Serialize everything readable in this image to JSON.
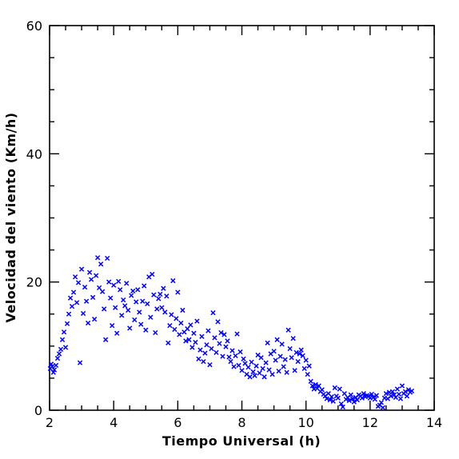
{
  "chart_data": {
    "type": "scatter",
    "title": "",
    "xlabel": "Tiempo Universal (h)",
    "ylabel": "Velocidad del viento (Km/h)",
    "xlim": [
      2,
      14
    ],
    "ylim": [
      0,
      60
    ],
    "x_ticks": [
      2,
      4,
      6,
      8,
      10,
      12,
      14
    ],
    "y_ticks": [
      0,
      20,
      40,
      60
    ],
    "x_tick_labels": [
      "2",
      "4",
      "6",
      "8",
      "10",
      "12",
      "14"
    ],
    "y_tick_labels": [
      "0",
      "20",
      "40",
      "60"
    ],
    "grid": false,
    "marker": "x",
    "color": "#0000ff",
    "series": [
      {
        "points": [
          [
            2.02,
            6.5
          ],
          [
            2.05,
            7.2
          ],
          [
            2.08,
            6.8
          ],
          [
            2.12,
            5.9
          ],
          [
            2.15,
            6.3
          ],
          [
            2.2,
            7.0
          ],
          [
            2.25,
            8.1
          ],
          [
            2.3,
            8.8
          ],
          [
            2.35,
            9.5
          ],
          [
            2.4,
            11.0
          ],
          [
            2.45,
            12.2
          ],
          [
            2.5,
            9.8
          ],
          [
            2.55,
            13.5
          ],
          [
            2.6,
            15.0
          ],
          [
            2.65,
            17.5
          ],
          [
            2.7,
            16.2
          ],
          [
            2.75,
            18.4
          ],
          [
            2.8,
            20.8
          ],
          [
            2.85,
            16.8
          ],
          [
            2.9,
            19.9
          ],
          [
            2.95,
            7.4
          ],
          [
            3.0,
            22.0
          ],
          [
            3.05,
            15.1
          ],
          [
            3.1,
            19.2
          ],
          [
            3.15,
            17.0
          ],
          [
            3.2,
            13.6
          ],
          [
            3.25,
            21.5
          ],
          [
            3.3,
            20.4
          ],
          [
            3.35,
            17.6
          ],
          [
            3.4,
            14.2
          ],
          [
            3.45,
            21.0
          ],
          [
            3.5,
            23.8
          ],
          [
            3.55,
            19.1
          ],
          [
            3.6,
            22.8
          ],
          [
            3.65,
            18.5
          ],
          [
            3.7,
            15.8
          ],
          [
            3.75,
            11.0
          ],
          [
            3.8,
            23.7
          ],
          [
            3.85,
            20.0
          ],
          [
            3.9,
            17.5
          ],
          [
            3.95,
            13.2
          ],
          [
            4.0,
            19.5
          ],
          [
            4.05,
            16.0
          ],
          [
            4.1,
            12.0
          ],
          [
            4.15,
            20.1
          ],
          [
            4.2,
            18.8
          ],
          [
            4.25,
            14.8
          ],
          [
            4.3,
            17.2
          ],
          [
            4.35,
            16.3
          ],
          [
            4.4,
            19.8
          ],
          [
            4.45,
            15.6
          ],
          [
            4.5,
            12.8
          ],
          [
            4.55,
            17.9
          ],
          [
            4.6,
            18.6
          ],
          [
            4.65,
            14.1
          ],
          [
            4.7,
            16.9
          ],
          [
            4.75,
            18.8
          ],
          [
            4.8,
            15.3
          ],
          [
            4.85,
            13.4
          ],
          [
            4.9,
            17.0
          ],
          [
            4.95,
            19.4
          ],
          [
            5.0,
            12.5
          ],
          [
            5.05,
            16.6
          ],
          [
            5.1,
            20.8
          ],
          [
            5.15,
            14.5
          ],
          [
            5.2,
            21.2
          ],
          [
            5.25,
            18.0
          ],
          [
            5.3,
            12.1
          ],
          [
            5.35,
            15.8
          ],
          [
            5.4,
            17.4
          ],
          [
            5.45,
            18.1
          ],
          [
            5.5,
            16.0
          ],
          [
            5.55,
            19.0
          ],
          [
            5.6,
            15.3
          ],
          [
            5.65,
            17.8
          ],
          [
            5.7,
            10.5
          ],
          [
            5.75,
            13.2
          ],
          [
            5.8,
            14.9
          ],
          [
            5.85,
            20.2
          ],
          [
            5.9,
            12.6
          ],
          [
            5.95,
            14.3
          ],
          [
            6.0,
            18.4
          ],
          [
            6.05,
            11.8
          ],
          [
            6.1,
            13.6
          ],
          [
            6.15,
            15.6
          ],
          [
            6.2,
            12.2
          ],
          [
            6.25,
            10.8
          ],
          [
            6.3,
            12.7
          ],
          [
            6.35,
            11.0
          ],
          [
            6.4,
            13.3
          ],
          [
            6.45,
            9.8
          ],
          [
            6.5,
            12.0
          ],
          [
            6.55,
            10.6
          ],
          [
            6.6,
            13.9
          ],
          [
            6.65,
            8.0
          ],
          [
            6.7,
            9.4
          ],
          [
            6.75,
            11.5
          ],
          [
            6.8,
            7.6
          ],
          [
            6.85,
            8.9
          ],
          [
            6.9,
            10.2
          ],
          [
            6.95,
            12.4
          ],
          [
            7.0,
            7.1
          ],
          [
            7.05,
            9.6
          ],
          [
            7.1,
            15.2
          ],
          [
            7.15,
            11.3
          ],
          [
            7.2,
            9.0
          ],
          [
            7.25,
            13.8
          ],
          [
            7.3,
            10.4
          ],
          [
            7.35,
            12.1
          ],
          [
            7.4,
            8.4
          ],
          [
            7.45,
            11.8
          ],
          [
            7.5,
            9.9
          ],
          [
            7.55,
            10.8
          ],
          [
            7.6,
            8.3
          ],
          [
            7.65,
            7.6
          ],
          [
            7.7,
            9.3
          ],
          [
            7.75,
            6.8
          ],
          [
            7.8,
            8.5
          ],
          [
            7.85,
            11.9
          ],
          [
            7.9,
            7.0
          ],
          [
            7.95,
            9.1
          ],
          [
            8.0,
            6.2
          ],
          [
            8.05,
            8.0
          ],
          [
            8.1,
            7.3
          ],
          [
            8.15,
            5.6
          ],
          [
            8.2,
            6.7
          ],
          [
            8.25,
            5.2
          ],
          [
            8.3,
            7.5
          ],
          [
            8.35,
            6.0
          ],
          [
            8.4,
            5.4
          ],
          [
            8.45,
            6.9
          ],
          [
            8.5,
            8.6
          ],
          [
            8.55,
            5.8
          ],
          [
            8.6,
            8.2
          ],
          [
            8.65,
            6.5
          ],
          [
            8.7,
            5.2
          ],
          [
            8.75,
            7.4
          ],
          [
            8.8,
            10.5
          ],
          [
            8.85,
            6.3
          ],
          [
            8.9,
            8.8
          ],
          [
            8.95,
            5.6
          ],
          [
            9.0,
            9.2
          ],
          [
            9.05,
            7.8
          ],
          [
            9.1,
            11.0
          ],
          [
            9.15,
            6.1
          ],
          [
            9.2,
            8.4
          ],
          [
            9.25,
            10.3
          ],
          [
            9.3,
            6.8
          ],
          [
            9.35,
            7.9
          ],
          [
            9.4,
            5.9
          ],
          [
            9.45,
            12.5
          ],
          [
            9.5,
            9.6
          ],
          [
            9.55,
            8.2
          ],
          [
            9.6,
            11.2
          ],
          [
            9.65,
            6.2
          ],
          [
            9.7,
            9.0
          ],
          [
            9.75,
            7.6
          ],
          [
            9.8,
            8.8
          ],
          [
            9.85,
            9.4
          ],
          [
            9.9,
            8.5
          ],
          [
            9.95,
            6.5
          ],
          [
            10.0,
            7.8
          ],
          [
            10.05,
            5.6
          ],
          [
            10.1,
            6.9
          ],
          [
            10.15,
            4.5
          ],
          [
            10.2,
            3.8
          ],
          [
            10.25,
            3.3
          ],
          [
            10.3,
            4.0
          ],
          [
            10.35,
            3.4
          ],
          [
            10.4,
            3.8
          ],
          [
            10.45,
            2.9
          ],
          [
            10.5,
            3.2
          ],
          [
            10.55,
            2.5
          ],
          [
            10.6,
            2.2
          ],
          [
            10.65,
            1.8
          ],
          [
            10.7,
            2.6
          ],
          [
            10.75,
            1.6
          ],
          [
            10.8,
            2.1
          ],
          [
            10.85,
            1.4
          ],
          [
            10.9,
            3.5
          ],
          [
            10.95,
            2.2
          ],
          [
            11.0,
            1.9
          ],
          [
            11.05,
            3.3
          ],
          [
            11.1,
            1.0
          ],
          [
            11.15,
            0.5
          ],
          [
            11.2,
            2.6
          ],
          [
            11.25,
            1.7
          ],
          [
            11.3,
            2.0
          ],
          [
            11.35,
            1.5
          ],
          [
            11.4,
            2.4
          ],
          [
            11.45,
            1.8
          ],
          [
            11.5,
            1.3
          ],
          [
            11.55,
            2.0
          ],
          [
            11.6,
            1.6
          ],
          [
            11.65,
            2.4
          ],
          [
            11.7,
            2.2
          ],
          [
            11.75,
            1.9
          ],
          [
            11.8,
            2.6
          ],
          [
            11.85,
            2.1
          ],
          [
            11.9,
            2.3
          ],
          [
            11.95,
            2.2
          ],
          [
            12.0,
            1.9
          ],
          [
            12.05,
            2.5
          ],
          [
            12.1,
            2.0
          ],
          [
            12.15,
            1.7
          ],
          [
            12.2,
            2.3
          ],
          [
            12.25,
            0.6
          ],
          [
            12.3,
            0.8
          ],
          [
            12.35,
            1.2
          ],
          [
            12.4,
            0.4
          ],
          [
            12.45,
            1.9
          ],
          [
            12.5,
            2.6
          ],
          [
            12.55,
            1.8
          ],
          [
            12.6,
            2.8
          ],
          [
            12.65,
            2.2
          ],
          [
            12.7,
            2.9
          ],
          [
            12.75,
            2.4
          ],
          [
            12.8,
            2.0
          ],
          [
            12.85,
            3.3
          ],
          [
            12.9,
            2.5
          ],
          [
            12.95,
            1.8
          ],
          [
            13.0,
            3.8
          ],
          [
            13.05,
            2.6
          ],
          [
            13.1,
            2.9
          ],
          [
            13.15,
            2.2
          ],
          [
            13.2,
            3.2
          ],
          [
            13.25,
            2.8
          ],
          [
            13.3,
            3.0
          ]
        ]
      }
    ]
  }
}
